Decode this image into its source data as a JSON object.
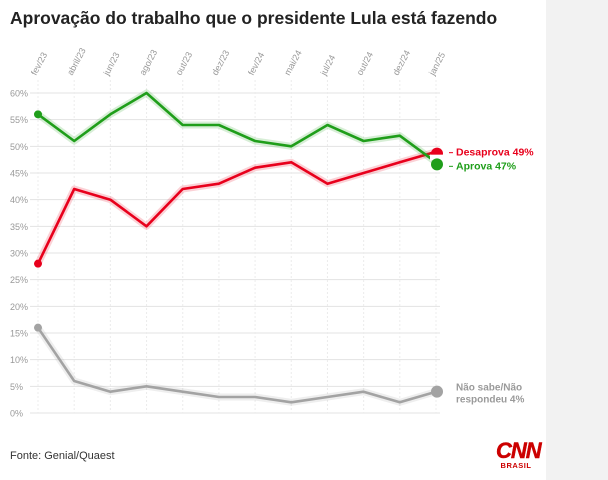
{
  "title": "Aprovação do trabalho que o presidente Lula está fazendo",
  "source": "Fonte: Genial/Quaest",
  "logo": {
    "text": "CNN",
    "subtext": "BRASIL"
  },
  "colors": {
    "disapprove": "#e8001c",
    "approve": "#1f9e1a",
    "unknown": "#a3a3a3",
    "grid": "#e3e3e3",
    "axis_text": "#999999"
  },
  "chart_data": {
    "type": "line",
    "x_ticks": [
      "fev/23",
      "abril/23",
      "jun/23",
      "ago/23",
      "out/23",
      "dez/23",
      "fev/24",
      "mai/24",
      "jul/24",
      "out/24",
      "dez/24",
      "jan/25"
    ],
    "x": [
      "fev/23",
      "abril/23",
      "jun/23",
      "ago/23",
      "out/23",
      "dez/23",
      "fev/24",
      "mai/24",
      "jul/24",
      "out/24",
      "dez/24",
      "jan/25"
    ],
    "yticks": [
      "60%",
      "55%",
      "50%",
      "45%",
      "40%",
      "35%",
      "30%",
      "25%",
      "20%",
      "15%",
      "10%",
      "5%",
      "0%"
    ],
    "ylim": [
      0,
      60
    ],
    "grid": true,
    "series": [
      {
        "name": "Desaprova",
        "label": "Desaprova 49%",
        "color": "#e8001c",
        "values": [
          28,
          42,
          40,
          35,
          42,
          43,
          46,
          47,
          43,
          45,
          47,
          49
        ]
      },
      {
        "name": "Aprova",
        "label": "Aprova 47%",
        "color": "#1f9e1a",
        "values": [
          56,
          51,
          56,
          60,
          54,
          54,
          51,
          50,
          54,
          51,
          52,
          47
        ]
      },
      {
        "name": "Não sabe/Não respondeu",
        "label_lines": [
          "Não sabe/Não",
          "respondeu 4%"
        ],
        "color": "#a3a3a3",
        "values": [
          16,
          6,
          4,
          5,
          4,
          3,
          3,
          2,
          3,
          4,
          2,
          4
        ]
      }
    ]
  }
}
